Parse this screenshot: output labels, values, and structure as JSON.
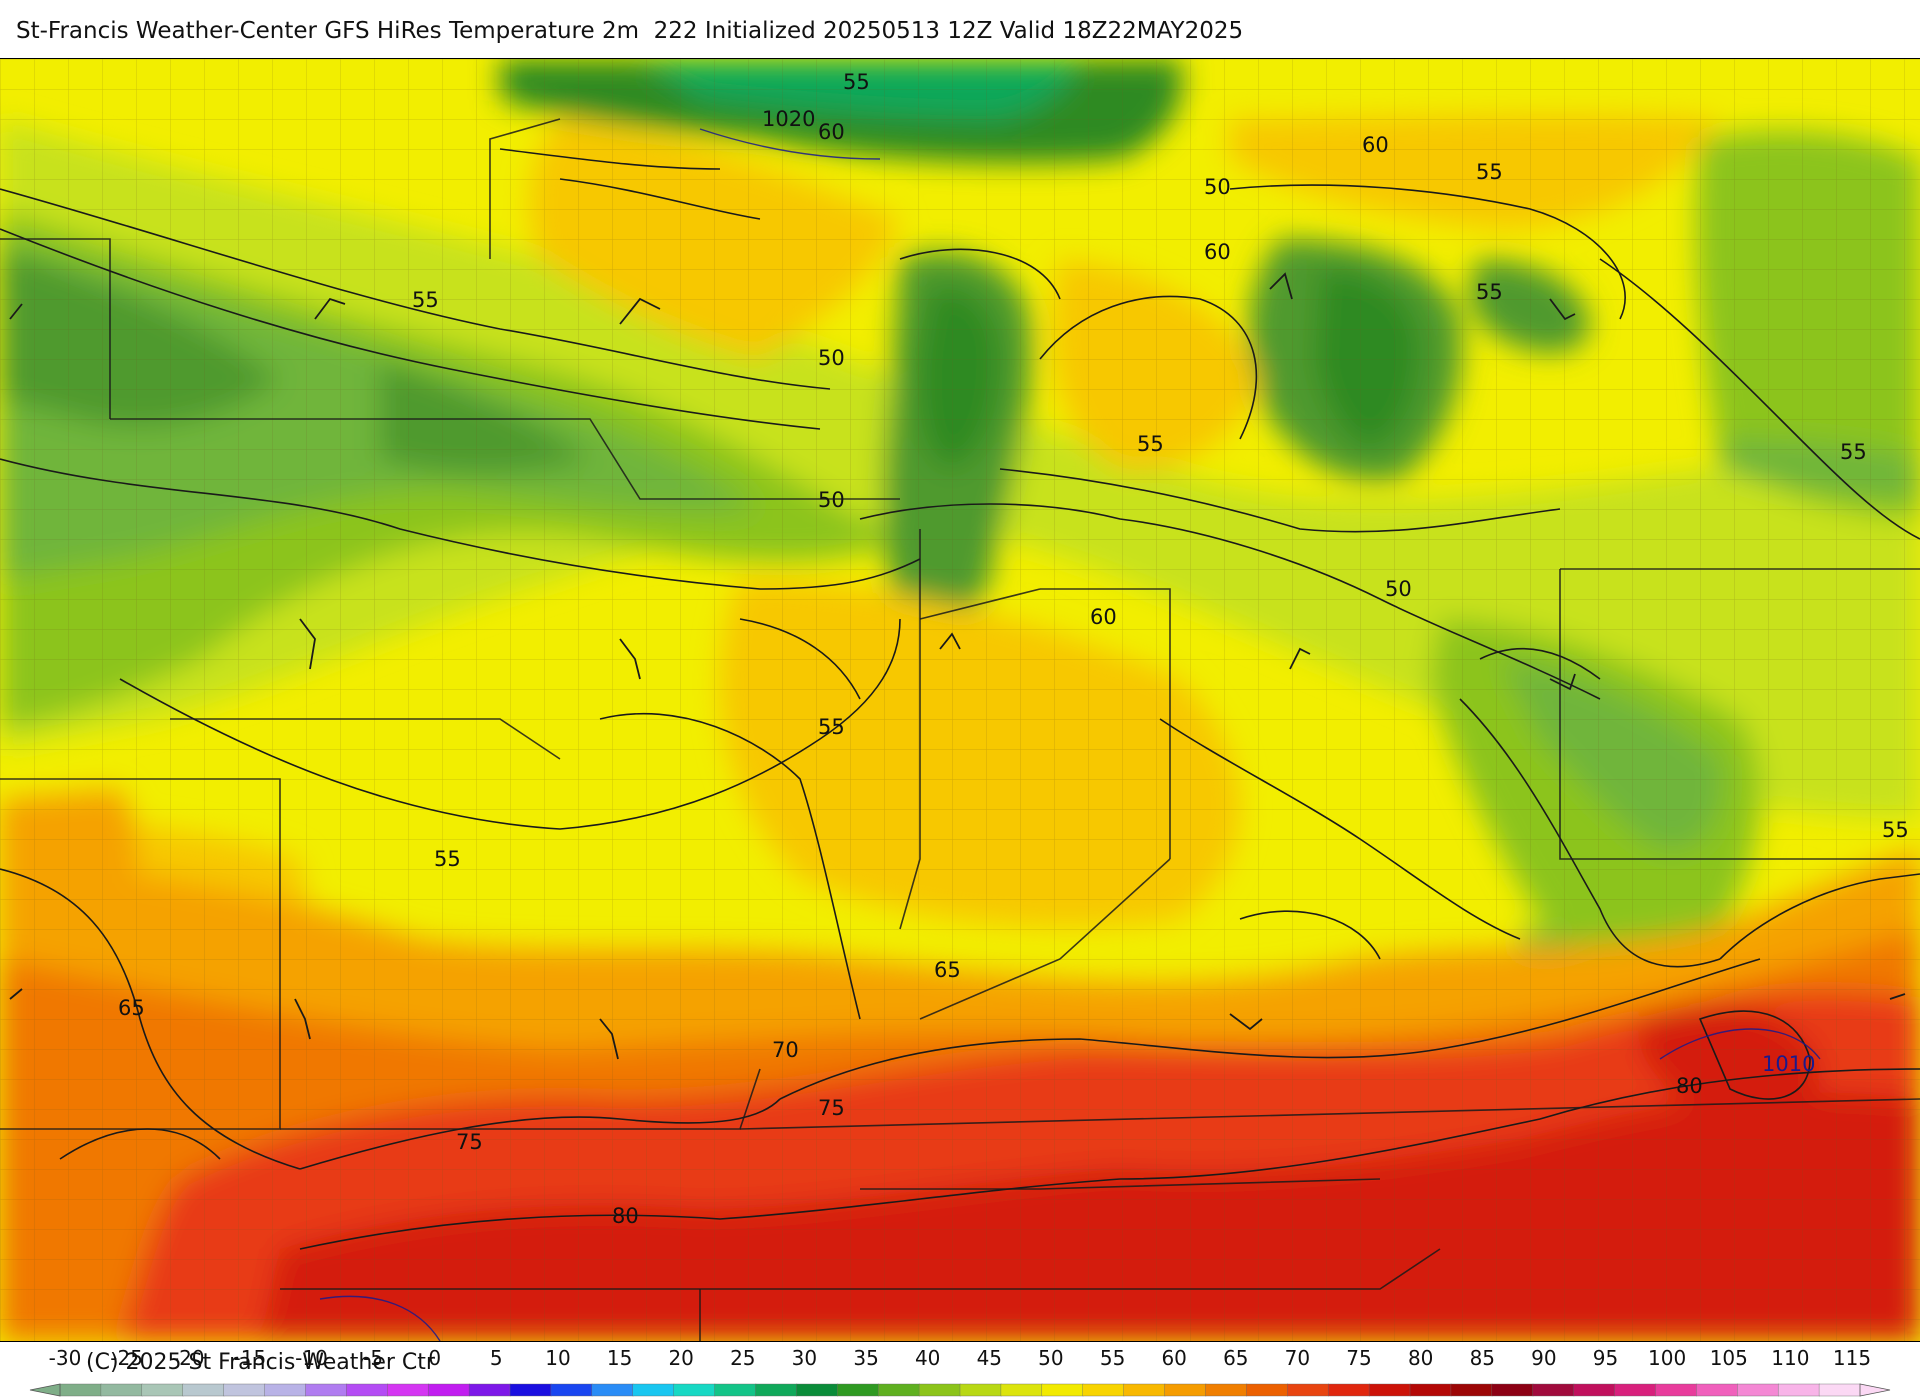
{
  "header": {
    "title": "St-Francis Weather-Center GFS HiRes Temperature 2m  222 Initialized 20250513 12Z Valid 18Z22MAY2025"
  },
  "map": {
    "contour_labels": [
      {
        "text": "55"
      },
      {
        "text": "1020"
      },
      {
        "text": "60"
      },
      {
        "text": "60"
      },
      {
        "text": "55"
      },
      {
        "text": "50"
      },
      {
        "text": "60"
      },
      {
        "text": "55"
      },
      {
        "text": "55"
      },
      {
        "text": "50"
      },
      {
        "text": "55"
      },
      {
        "text": "55"
      },
      {
        "text": "50"
      },
      {
        "text": "50"
      },
      {
        "text": "60"
      },
      {
        "text": "55"
      },
      {
        "text": "55"
      },
      {
        "text": "55"
      },
      {
        "text": "65"
      },
      {
        "text": "65"
      },
      {
        "text": "70"
      },
      {
        "text": "75"
      },
      {
        "text": "75"
      },
      {
        "text": "80"
      },
      {
        "text": "80"
      },
      {
        "text": "1010"
      }
    ],
    "colors": {
      "cold": "#4f9a2f",
      "green": "#6fb53a",
      "yellowgreen": "#c8e21a",
      "yellow": "#f2ee00",
      "gold": "#f7c800",
      "orange": "#f5a200",
      "darkorange": "#f07800",
      "red": "#e83a14",
      "deepred": "#d41a10"
    }
  },
  "colorbar": {
    "ticks": [
      "-30",
      "-25",
      "-20",
      "-15",
      "-10",
      "-5",
      "0",
      "5",
      "10",
      "15",
      "20",
      "25",
      "30",
      "35",
      "40",
      "45",
      "50",
      "55",
      "60",
      "65",
      "70",
      "75",
      "80",
      "85",
      "90",
      "95",
      "100",
      "105",
      "110",
      "115"
    ],
    "swatches": [
      "#7fae88",
      "#93b9a0",
      "#a9c6b6",
      "#b8c8cf",
      "#c0c4de",
      "#b8b2e6",
      "#b07cf0",
      "#b44cf4",
      "#d436f2",
      "#c11ef0",
      "#7d18e8",
      "#1a0fe0",
      "#1946f0",
      "#2a8cf6",
      "#19c6f0",
      "#17d8c4",
      "#13c488",
      "#10a85a",
      "#0a8c3a",
      "#2f9a22",
      "#5fb020",
      "#8cc41a",
      "#b8d814",
      "#dce40c",
      "#f2ea00",
      "#f8d400",
      "#f8b800",
      "#f59c00",
      "#f07e00",
      "#ec6000",
      "#e84410",
      "#e0260e",
      "#cc1208",
      "#b40806",
      "#9c0606",
      "#8c0014",
      "#a00a3c",
      "#c0105c",
      "#d8207c",
      "#e83c9c",
      "#f060bc",
      "#f488d4",
      "#f8b4e8",
      "#fbd8f4"
    ],
    "copyright": "(C) 2025 St Francis Weather Ctr"
  }
}
